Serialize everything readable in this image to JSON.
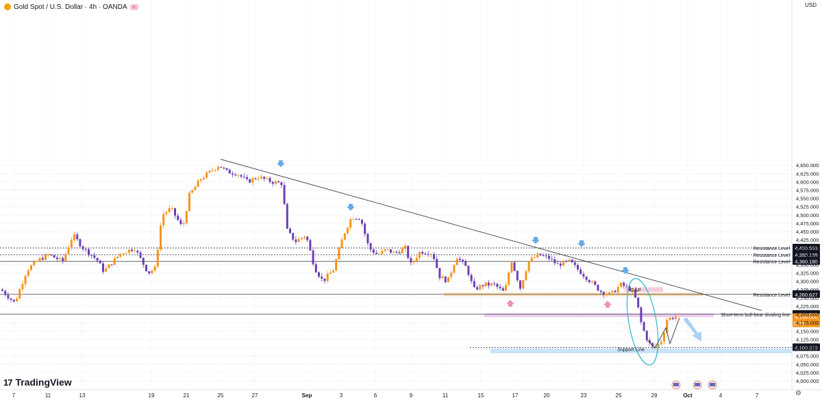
{
  "header": {
    "symbol": "Gold Spot / U.S. Dollar · 4h · OANDA",
    "currency": "USD"
  },
  "logo_text": "TradingView",
  "colors": {
    "bull": "#f7931a",
    "bear": "#6a3fb5",
    "trend": "#131722",
    "resistance": "#131722",
    "support_zone": "#bcdcf7",
    "gap_zone": "#f3bfd6",
    "divider_zone": "#e8c1e8",
    "orange_zone": "#f7d7a8",
    "arrow_down": "#64a9e8",
    "arrow_up": "#f08fb5"
  },
  "chart_data": {
    "type": "candlestick",
    "title": "Gold Spot / U.S. Dollar · 4h · OANDA",
    "timeframe": "4h",
    "ylim": [
      4000,
      4665
    ],
    "y_ticks": [
      "4,000.000",
      "4,025.000",
      "4,050.000",
      "4,075.000",
      "4,100.000",
      "4,125.000",
      "4,150.000",
      "4,175.000",
      "4,200.000",
      "4,225.000",
      "4,250.000",
      "4,275.000",
      "4,300.000",
      "4,325.000",
      "4,350.000",
      "4,375.000",
      "4,400.000",
      "4,425.000",
      "4,450.000",
      "4,475.000",
      "4,500.000",
      "4,525.000",
      "4,550.000",
      "4,575.000",
      "4,600.000",
      "4,625.000",
      "4,650.000"
    ],
    "x_ticks": [
      "7",
      "11",
      "13",
      "19",
      "21",
      "25",
      "27",
      "Sep",
      "3",
      "6",
      "9",
      "11",
      "15",
      "17",
      "20",
      "23",
      "25",
      "29",
      "Oct",
      "4",
      "7"
    ],
    "price_path": [
      [
        0,
        4275
      ],
      [
        20,
        4235
      ],
      [
        38,
        4335
      ],
      [
        55,
        4365
      ],
      [
        70,
        4380
      ],
      [
        90,
        4360
      ],
      [
        105,
        4440
      ],
      [
        120,
        4400
      ],
      [
        140,
        4365
      ],
      [
        150,
        4330
      ],
      [
        175,
        4385
      ],
      [
        195,
        4400
      ],
      [
        215,
        4325
      ],
      [
        225,
        4340
      ],
      [
        235,
        4500
      ],
      [
        248,
        4520
      ],
      [
        265,
        4460
      ],
      [
        275,
        4560
      ],
      [
        292,
        4610
      ],
      [
        305,
        4630
      ],
      [
        318,
        4650
      ],
      [
        330,
        4630
      ],
      [
        345,
        4625
      ],
      [
        360,
        4600
      ],
      [
        375,
        4615
      ],
      [
        395,
        4600
      ],
      [
        410,
        4595
      ],
      [
        418,
        4450
      ],
      [
        430,
        4420
      ],
      [
        445,
        4440
      ],
      [
        458,
        4340
      ],
      [
        470,
        4300
      ],
      [
        485,
        4335
      ],
      [
        500,
        4440
      ],
      [
        512,
        4495
      ],
      [
        525,
        4490
      ],
      [
        537,
        4400
      ],
      [
        550,
        4380
      ],
      [
        562,
        4395
      ],
      [
        575,
        4385
      ],
      [
        590,
        4400
      ],
      [
        598,
        4350
      ],
      [
        612,
        4390
      ],
      [
        630,
        4385
      ],
      [
        640,
        4315
      ],
      [
        652,
        4300
      ],
      [
        665,
        4375
      ],
      [
        680,
        4340
      ],
      [
        690,
        4275
      ],
      [
        705,
        4290
      ],
      [
        720,
        4290
      ],
      [
        735,
        4265
      ],
      [
        745,
        4365
      ],
      [
        758,
        4280
      ],
      [
        770,
        4360
      ],
      [
        785,
        4380
      ],
      [
        800,
        4370
      ],
      [
        812,
        4350
      ],
      [
        830,
        4360
      ],
      [
        845,
        4330
      ],
      [
        860,
        4300
      ],
      [
        875,
        4270
      ],
      [
        890,
        4260
      ],
      [
        905,
        4290
      ],
      [
        920,
        4275
      ],
      [
        928,
        4240
      ],
      [
        935,
        4170
      ],
      [
        942,
        4130
      ],
      [
        950,
        4100
      ],
      [
        958,
        4105
      ],
      [
        965,
        4125
      ],
      [
        972,
        4185
      ],
      [
        980,
        4190
      ],
      [
        988,
        4198
      ]
    ],
    "annotations": [
      {
        "type": "hline",
        "label": "Resistance Level",
        "value": 4400.563,
        "price_label": "4,400.563",
        "style": "dotted"
      },
      {
        "type": "hline",
        "label": "Resistance Level",
        "value": 4380.139,
        "price_label": "4,380.139",
        "style": "dotted"
      },
      {
        "type": "hline",
        "label": "Resistance Level",
        "value": 4360.18,
        "price_label": "4,360.180",
        "style": "solid"
      },
      {
        "type": "hline",
        "label": "Resistance Level",
        "value": 4260.627,
        "price_label": "4,260.627",
        "style": "solid"
      },
      {
        "type": "hline",
        "label": "Short-term bull-bear dividing line",
        "value": 4200.777,
        "price_label": "4,200.777",
        "style": "solid"
      },
      {
        "type": "hline",
        "label": "Support Line",
        "value": 4100.379,
        "price_label": "4,100.379",
        "style": "dotted"
      }
    ],
    "last_price": {
      "value": 4199.0,
      "label": "4,199.000",
      "countdown": "11:48"
    },
    "gap_label": "GAP"
  }
}
